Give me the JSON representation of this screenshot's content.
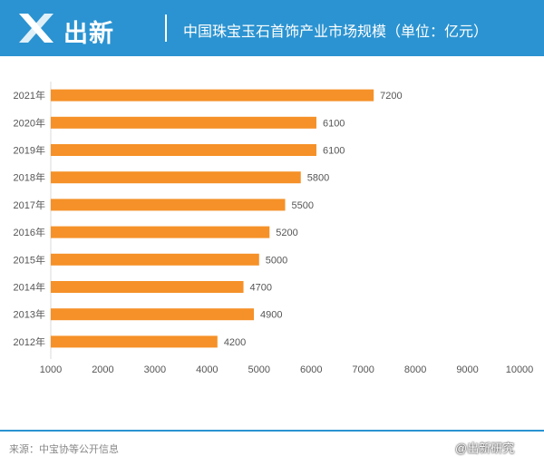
{
  "header": {
    "logo_text": "出新",
    "title": "中国珠宝玉石首饰产业市场规模（单位：亿元）"
  },
  "footer": {
    "source": "来源：中宝协等公开信息",
    "watermark": "@出新研究"
  },
  "colors": {
    "header_bg": "#2b93d1",
    "bar": "#f59128",
    "accent": "#2b93d1"
  },
  "icons": {
    "logo": "x-logo-icon"
  },
  "chart_data": {
    "type": "bar",
    "orientation": "horizontal",
    "title": "中国珠宝玉石首饰产业市场规模（单位：亿元）",
    "xlabel": "",
    "ylabel": "",
    "categories": [
      "2021年",
      "2020年",
      "2019年",
      "2018年",
      "2017年",
      "2016年",
      "2015年",
      "2014年",
      "2013年",
      "2012年"
    ],
    "values": [
      7200,
      6100,
      6100,
      5800,
      5500,
      5200,
      5000,
      4700,
      4900,
      4200
    ],
    "xlim": [
      1000,
      10000
    ],
    "xticks": [
      1000,
      2000,
      3000,
      4000,
      5000,
      6000,
      7000,
      8000,
      9000,
      10000
    ],
    "grid": false,
    "legend": "none",
    "data_labels": true
  }
}
